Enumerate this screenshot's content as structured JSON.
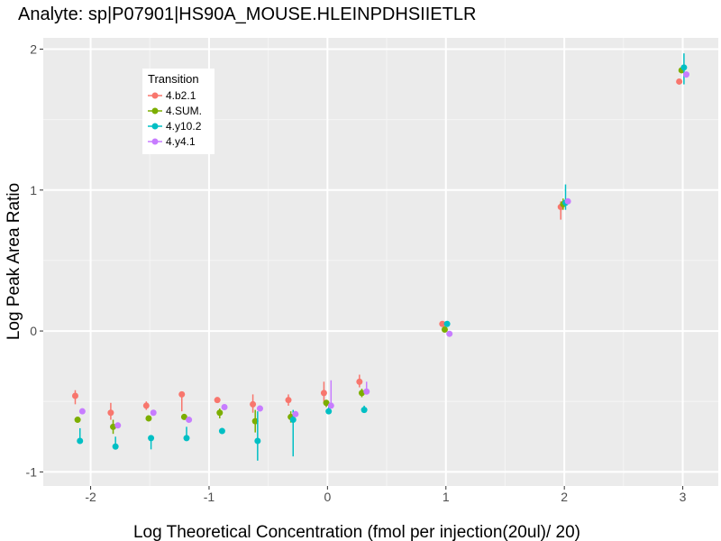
{
  "chart_data": {
    "type": "scatter",
    "title": "Analyte: sp|P07901|HS90A_MOUSE.HLEINPDHSIIETLR",
    "xlabel": "Log Theoretical Concentration (fmol per injection(20ul)/ 20)",
    "ylabel": "Log Peak Area Ratio",
    "xlim": [
      -2.4,
      3.3
    ],
    "ylim": [
      -1.1,
      2.08
    ],
    "x_ticks": [
      -2,
      -1,
      0,
      1,
      2,
      3
    ],
    "y_ticks": [
      -1,
      0,
      1,
      2
    ],
    "x_tick_labels": [
      "-2",
      "-1",
      "0",
      "1",
      "2",
      "3"
    ],
    "y_tick_labels": [
      "-1",
      "0",
      "1",
      "2"
    ],
    "grid": true,
    "legend": {
      "title": "Transition",
      "position": "top-left"
    },
    "x": [
      -2.1,
      -1.8,
      -1.5,
      -1.2,
      -0.9,
      -0.6,
      -0.3,
      0,
      0.3,
      1,
      2,
      3
    ],
    "series": [
      {
        "name": "4.b2.1",
        "color": "#F8766D",
        "offset": -0.03,
        "y": [
          -0.46,
          -0.58,
          -0.53,
          -0.45,
          -0.49,
          -0.52,
          -0.49,
          -0.44,
          -0.36,
          0.05,
          0.88,
          1.77
        ],
        "ymin": [
          -0.52,
          -0.63,
          -0.56,
          -0.57,
          -0.5,
          -0.58,
          -0.53,
          -0.51,
          -0.4,
          0.03,
          0.79,
          1.76
        ],
        "ymax": [
          -0.42,
          -0.51,
          -0.5,
          -0.45,
          -0.48,
          -0.45,
          -0.45,
          -0.36,
          -0.31,
          0.07,
          0.92,
          1.78
        ]
      },
      {
        "name": "4.SUM.",
        "color": "#7CAE00",
        "offset": -0.01,
        "y": [
          -0.63,
          -0.68,
          -0.62,
          -0.61,
          -0.58,
          -0.64,
          -0.61,
          -0.51,
          -0.44,
          0.01,
          0.9,
          1.85
        ],
        "ymin": [
          -0.65,
          -0.73,
          -0.64,
          -0.62,
          -0.62,
          -0.72,
          -0.65,
          -0.54,
          -0.47,
          0.0,
          0.86,
          1.84
        ],
        "ymax": [
          -0.61,
          -0.63,
          -0.6,
          -0.6,
          -0.55,
          -0.56,
          -0.57,
          -0.49,
          -0.41,
          0.03,
          0.94,
          1.86
        ]
      },
      {
        "name": "4.y10.2",
        "color": "#00BFC4",
        "offset": 0.01,
        "y": [
          -0.78,
          -0.82,
          -0.76,
          -0.76,
          -0.71,
          -0.78,
          -0.63,
          -0.57,
          -0.56,
          0.05,
          0.91,
          1.87
        ],
        "ymin": [
          -0.79,
          -0.84,
          -0.84,
          -0.76,
          -0.72,
          -0.92,
          -0.89,
          -0.58,
          -0.57,
          0.04,
          0.86,
          1.75
        ],
        "ymax": [
          -0.69,
          -0.75,
          -0.76,
          -0.68,
          -0.7,
          -0.57,
          -0.56,
          -0.54,
          -0.53,
          0.06,
          1.04,
          1.97
        ]
      },
      {
        "name": "4.y4.1",
        "color": "#C77CFF",
        "offset": 0.03,
        "y": [
          -0.57,
          -0.67,
          -0.58,
          -0.63,
          -0.54,
          -0.55,
          -0.59,
          -0.53,
          -0.43,
          -0.02,
          0.92,
          1.82
        ],
        "ymin": [
          -0.59,
          -0.68,
          -0.59,
          -0.64,
          -0.55,
          -0.56,
          -0.6,
          -0.54,
          -0.44,
          -0.03,
          0.91,
          1.81
        ],
        "ymax": [
          -0.55,
          -0.66,
          -0.57,
          -0.61,
          -0.53,
          -0.54,
          -0.58,
          -0.35,
          -0.36,
          -0.01,
          0.93,
          1.83
        ]
      }
    ]
  }
}
